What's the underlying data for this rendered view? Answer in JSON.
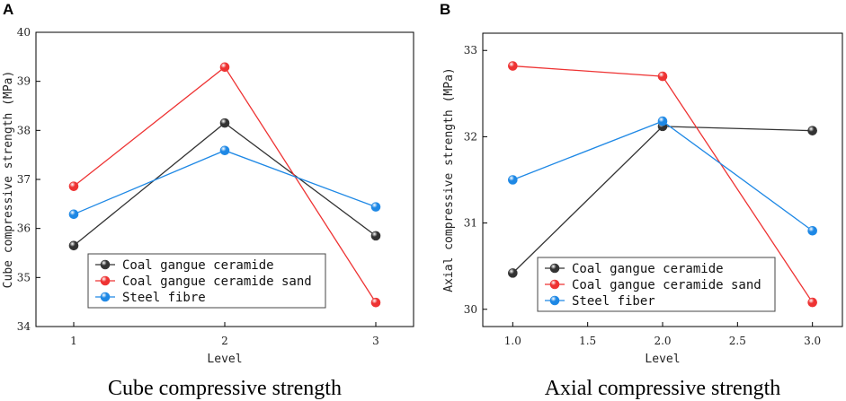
{
  "chart_data": [
    {
      "type": "line",
      "panel_label": "A",
      "caption": "Cube compressive strength",
      "xlabel": "Level",
      "ylabel": "Cube compressive strength (MPa)",
      "x": [
        1,
        2,
        3
      ],
      "xlim": [
        0.75,
        3.25
      ],
      "ylim": [
        34,
        40
      ],
      "xticks": [
        1,
        2,
        3
      ],
      "xtick_labels": [
        "1",
        "2",
        "3"
      ],
      "yticks": [
        34,
        35,
        36,
        37,
        38,
        39,
        40
      ],
      "ytick_labels": [
        "34",
        "35",
        "36",
        "37",
        "38",
        "39",
        "40"
      ],
      "legend_position": "lower-left",
      "series": [
        {
          "name": "Coal gangue ceramide",
          "color": "#333333",
          "values": [
            35.65,
            38.15,
            35.85
          ]
        },
        {
          "name": "Coal gangue ceramide sand",
          "color": "#ee3333",
          "values": [
            36.86,
            39.29,
            34.49
          ]
        },
        {
          "name": "Steel fibre",
          "color": "#1e88e5",
          "values": [
            36.29,
            37.59,
            36.44
          ]
        }
      ]
    },
    {
      "type": "line",
      "panel_label": "B",
      "caption": "Axial compressive strength",
      "xlabel": "Level",
      "ylabel": "Axial compressive strength (MPa)",
      "x": [
        1.0,
        2.0,
        3.0
      ],
      "xlim": [
        0.8,
        3.2
      ],
      "ylim": [
        29.8,
        33.2
      ],
      "xticks": [
        1.0,
        1.5,
        2.0,
        2.5,
        3.0
      ],
      "xtick_labels": [
        "1.0",
        "1.5",
        "2.0",
        "2.5",
        "3.0"
      ],
      "yticks": [
        30,
        31,
        32,
        33
      ],
      "ytick_labels": [
        "30",
        "31",
        "32",
        "33"
      ],
      "legend_position": "lower-left",
      "series": [
        {
          "name": "Coal gangue ceramide",
          "color": "#333333",
          "values": [
            30.42,
            32.12,
            32.07
          ]
        },
        {
          "name": "Coal gangue ceramide sand",
          "color": "#ee3333",
          "values": [
            32.82,
            32.7,
            30.08
          ]
        },
        {
          "name": "Steel fiber",
          "color": "#1e88e5",
          "values": [
            31.5,
            32.18,
            30.91
          ]
        }
      ]
    }
  ]
}
